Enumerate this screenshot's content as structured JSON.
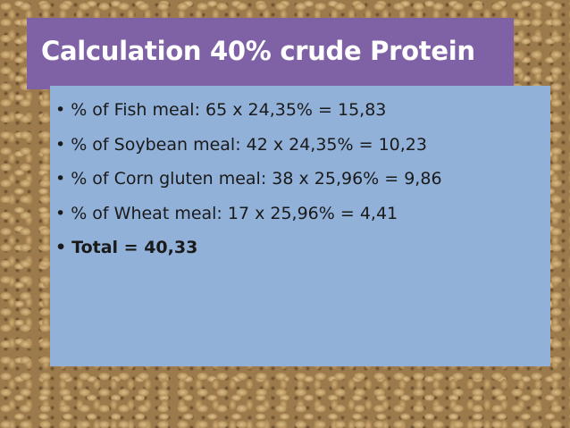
{
  "header": {
    "title": "Calculation 40% crude Protein"
  },
  "bullets": [
    "% of Fish meal: 65 x 24,35% = 15,83",
    "% of Soybean meal: 42 x 24,35% = 10,23",
    "% of Corn gluten meal: 38 x 25,96% = 9,86",
    "% of Wheat meal: 17 x 25,96% = 4,41",
    "Total = 40,33"
  ]
}
